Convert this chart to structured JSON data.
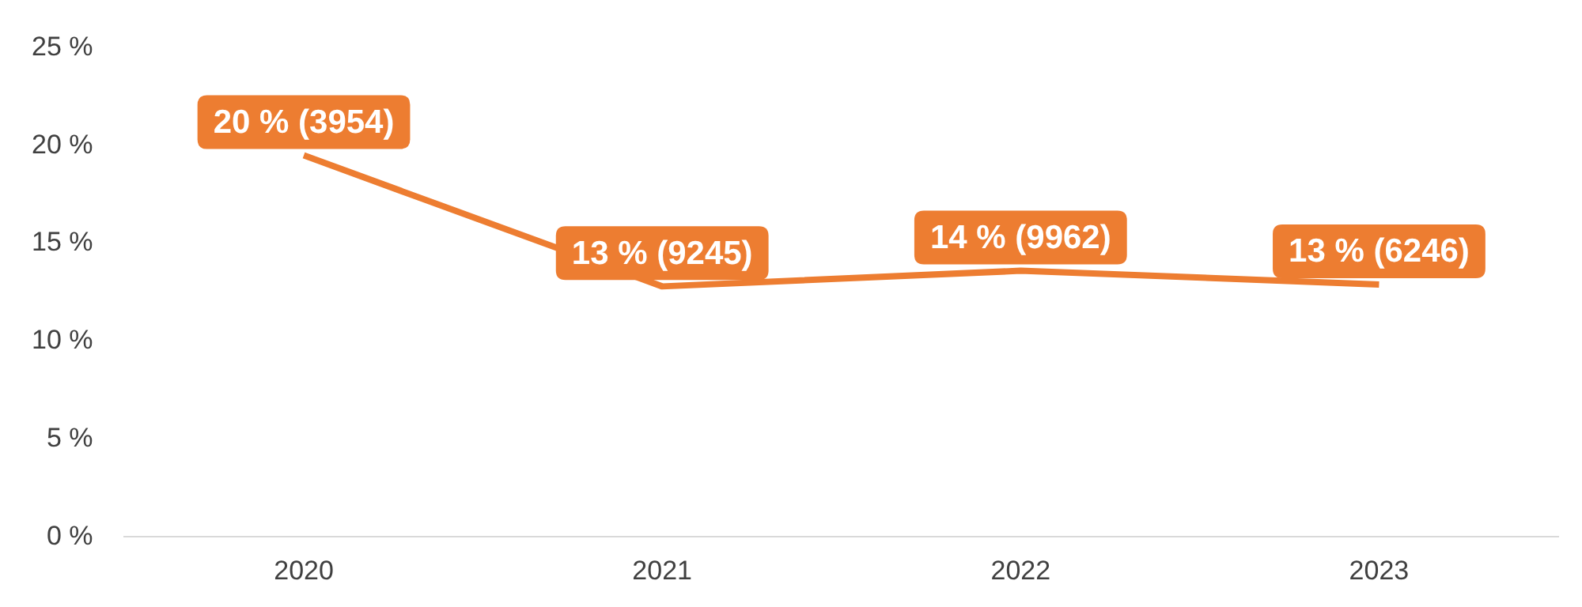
{
  "chart_data": {
    "type": "line",
    "categories": [
      "2020",
      "2021",
      "2022",
      "2023"
    ],
    "series": [
      {
        "color": "#ed7d31",
        "values": [
          19.5,
          12.8,
          13.6,
          12.9
        ],
        "value_labels": [
          "20 % (3954)",
          "13 % (9245)",
          "14 % (9962)",
          "13 % (6246)"
        ]
      }
    ],
    "ylim": [
      0,
      25
    ],
    "yticks": [
      {
        "value": 0,
        "label": "0 %"
      },
      {
        "value": 5,
        "label": "5 %"
      },
      {
        "value": 10,
        "label": "10 %"
      },
      {
        "value": 15,
        "label": "15 %"
      },
      {
        "value": 20,
        "label": "20 %"
      },
      {
        "value": 25,
        "label": "25 %"
      }
    ],
    "grid": false,
    "legend": false,
    "line_style": "solid"
  }
}
